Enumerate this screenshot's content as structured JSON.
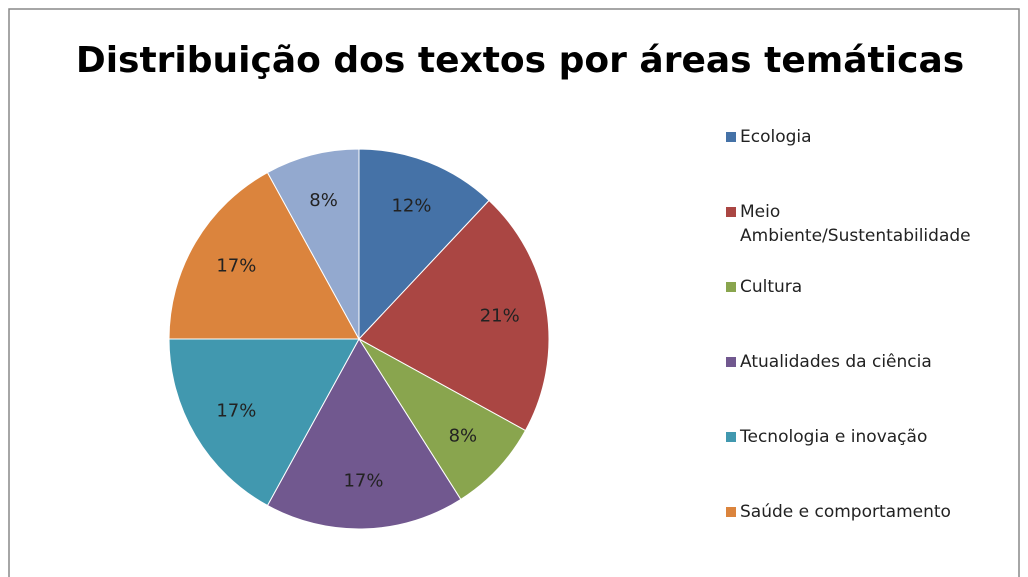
{
  "chart_data": {
    "type": "pie",
    "title": "Distribuição dos textos por áreas temáticas",
    "categories": [
      "Ecologia",
      "Meio Ambiente/Sustentabilidade",
      "Cultura",
      "Atualidades da ciência",
      "Tecnologia e inovação",
      "Saúde e comportamento",
      null
    ],
    "values": [
      12,
      21,
      8,
      17,
      17,
      17,
      8
    ],
    "value_labels": [
      "12%",
      "21%",
      "8%",
      "17%",
      "17%",
      "17%",
      "8%"
    ],
    "colors": [
      "#4572a7",
      "#aa4643",
      "#89a54e",
      "#71588f",
      "#4198af",
      "#db843d",
      "#93a9cf"
    ],
    "legend": "right"
  }
}
